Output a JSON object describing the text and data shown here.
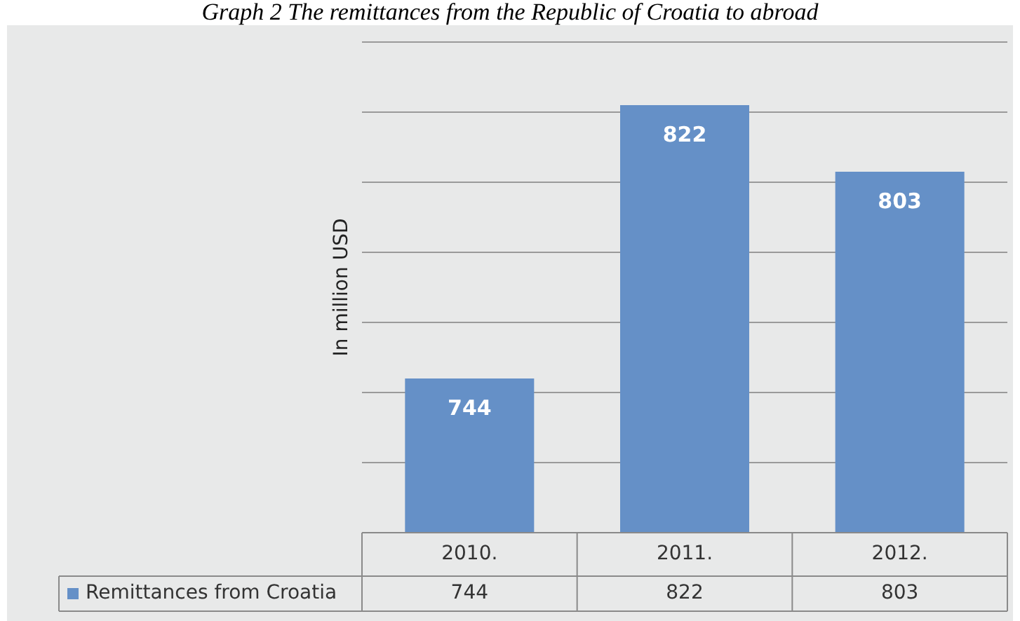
{
  "chart_data": {
    "type": "bar",
    "title": "Graph 2 The remittances from the Republic of Croatia to abroad",
    "ylabel": "In million USD",
    "categories": [
      "2010.",
      "2011.",
      "2012."
    ],
    "series": [
      {
        "name": "Remittances from Croatia",
        "color": "#6590c7",
        "values": [
          744,
          822,
          803
        ],
        "value_labels": [
          "744",
          "822",
          "803"
        ]
      }
    ],
    "ylim": [
      700,
      840
    ],
    "yticks": [
      {
        "value": 700,
        "label": null
      },
      {
        "value": 720,
        "label": null
      },
      {
        "value": 740,
        "label": null
      },
      {
        "value": 760,
        "label": null
      },
      {
        "value": 780,
        "label": null
      },
      {
        "value": 800,
        "label": null
      },
      {
        "value": 820,
        "label": null
      },
      {
        "value": 840,
        "label": null
      }
    ],
    "annotations": [
      "744",
      "822",
      "803"
    ],
    "grid": "y",
    "tick_labels": "x",
    "legend": "bottom",
    "data_labels": true
  }
}
